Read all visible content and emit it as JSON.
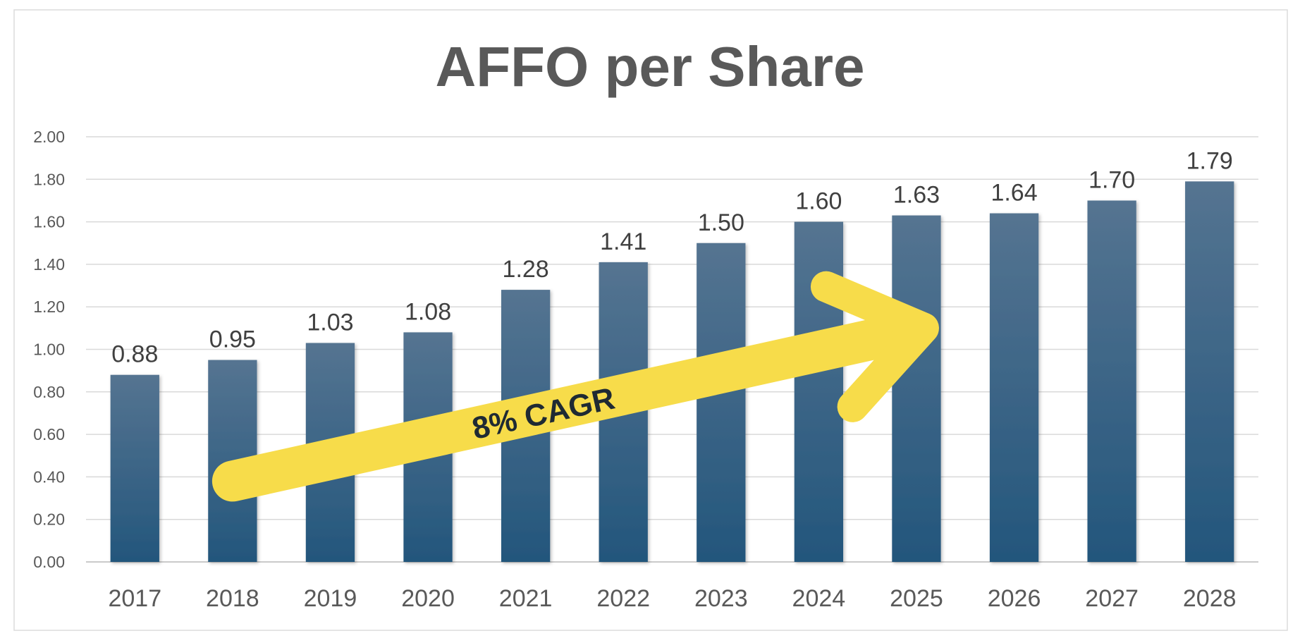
{
  "chart_data": {
    "type": "bar",
    "title": "AFFO per Share",
    "xlabel": "",
    "ylabel": "",
    "categories": [
      "2017",
      "2018",
      "2019",
      "2020",
      "2021",
      "2022",
      "2023",
      "2024",
      "2025",
      "2026",
      "2027",
      "2028"
    ],
    "values": [
      0.88,
      0.95,
      1.03,
      1.08,
      1.28,
      1.41,
      1.5,
      1.6,
      1.63,
      1.64,
      1.7,
      1.79
    ],
    "value_labels": [
      "0.88",
      "0.95",
      "1.03",
      "1.08",
      "1.28",
      "1.41",
      "1.50",
      "1.60",
      "1.63",
      "1.64",
      "1.70",
      "1.79"
    ],
    "y_ticks": [
      "0.00",
      "0.20",
      "0.40",
      "0.60",
      "0.80",
      "1.00",
      "1.20",
      "1.40",
      "1.60",
      "1.80",
      "2.00"
    ],
    "ylim": [
      0,
      2
    ],
    "grid": true,
    "legend": "none",
    "bar_color_top": "#557491",
    "bar_color_bottom": "#23567c",
    "annotation": {
      "text": "8% CAGR",
      "color": "#f7dc4a",
      "text_color": "#1f2a33",
      "from_category": "2018",
      "from_value": 0.38,
      "to_category": "2025",
      "to_value": 1.1
    }
  }
}
